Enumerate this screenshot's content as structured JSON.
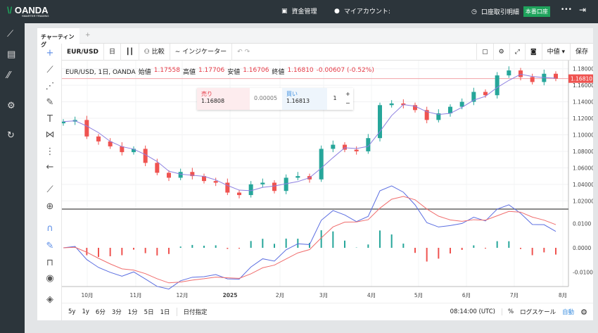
{
  "header": {
    "brand": "OANDA",
    "tagline": "SMARTER TRADING",
    "funds": "資金管理",
    "account": "マイアカウント:",
    "statement": "口座取引明細",
    "live_badge": "本番口座",
    "more": "•••"
  },
  "tabs": [
    "チャーティング",
    "+"
  ],
  "toolbar": {
    "symbol": "EUR/USD",
    "interval": "日",
    "compare": "比較",
    "indicators": "インジケーター",
    "price_type": "中値 ▾",
    "save": "保存"
  },
  "legend": {
    "title": "EUR/USD, 1日, OANDA",
    "open_label": "始値",
    "open": "1.17558",
    "high_label": "高値",
    "high": "1.17706",
    "low_label": "安値",
    "low": "1.16706",
    "close_label": "終値",
    "close": "1.16810",
    "change": "-0.00607 (-0.52%)"
  },
  "trade": {
    "sell_label": "売り",
    "sell": "1.16808",
    "spread": "0.00005",
    "buy_label": "買い",
    "buy": "1.16813",
    "qty": "1",
    "plus": "+",
    "minus": "−"
  },
  "colors": {
    "up": "#26a69a",
    "down": "#ef5350",
    "ma": "#8c7fe0",
    "macd": "#5b6ee1",
    "signal": "#f06d6d"
  },
  "chart_data": {
    "type": "candlestick",
    "interval": "weekly-approx",
    "closes": [
      1.116,
      1.118,
      1.098,
      1.092,
      1.086,
      1.079,
      1.083,
      1.066,
      1.054,
      1.048,
      1.055,
      1.05,
      1.044,
      1.042,
      1.03,
      1.027,
      1.04,
      1.042,
      1.032,
      1.048,
      1.05,
      1.046,
      1.083,
      1.088,
      1.082,
      1.08,
      1.096,
      1.136,
      1.138,
      1.136,
      1.13,
      1.118,
      1.126,
      1.134,
      1.14,
      1.152,
      1.148,
      1.172,
      1.178,
      1.17,
      1.164,
      1.174,
      1.168
    ],
    "ylim": [
      1.01,
      1.19
    ],
    "price_ticks": [
      "1.18000",
      "1.16000",
      "1.14000",
      "1.12000",
      "1.10000",
      "1.08000",
      "1.06000",
      "1.04000",
      "1.02000"
    ],
    "last_price": "1.16810",
    "macd_ticks": [
      "0.0100",
      "0.0000",
      "-0.0100"
    ],
    "x_ticks": [
      "10月",
      "11月",
      "12月",
      "2025",
      "2月",
      "3月",
      "4月",
      "5月",
      "6月",
      "7月",
      "8月"
    ]
  },
  "bottom": {
    "ranges": [
      "5y",
      "1y",
      "6分",
      "3分",
      "1分",
      "5日",
      "1日"
    ],
    "goto": "日付指定",
    "time": "08:14:00 (UTC)",
    "percent": "%",
    "log": "ログスケール",
    "auto": "自動"
  }
}
